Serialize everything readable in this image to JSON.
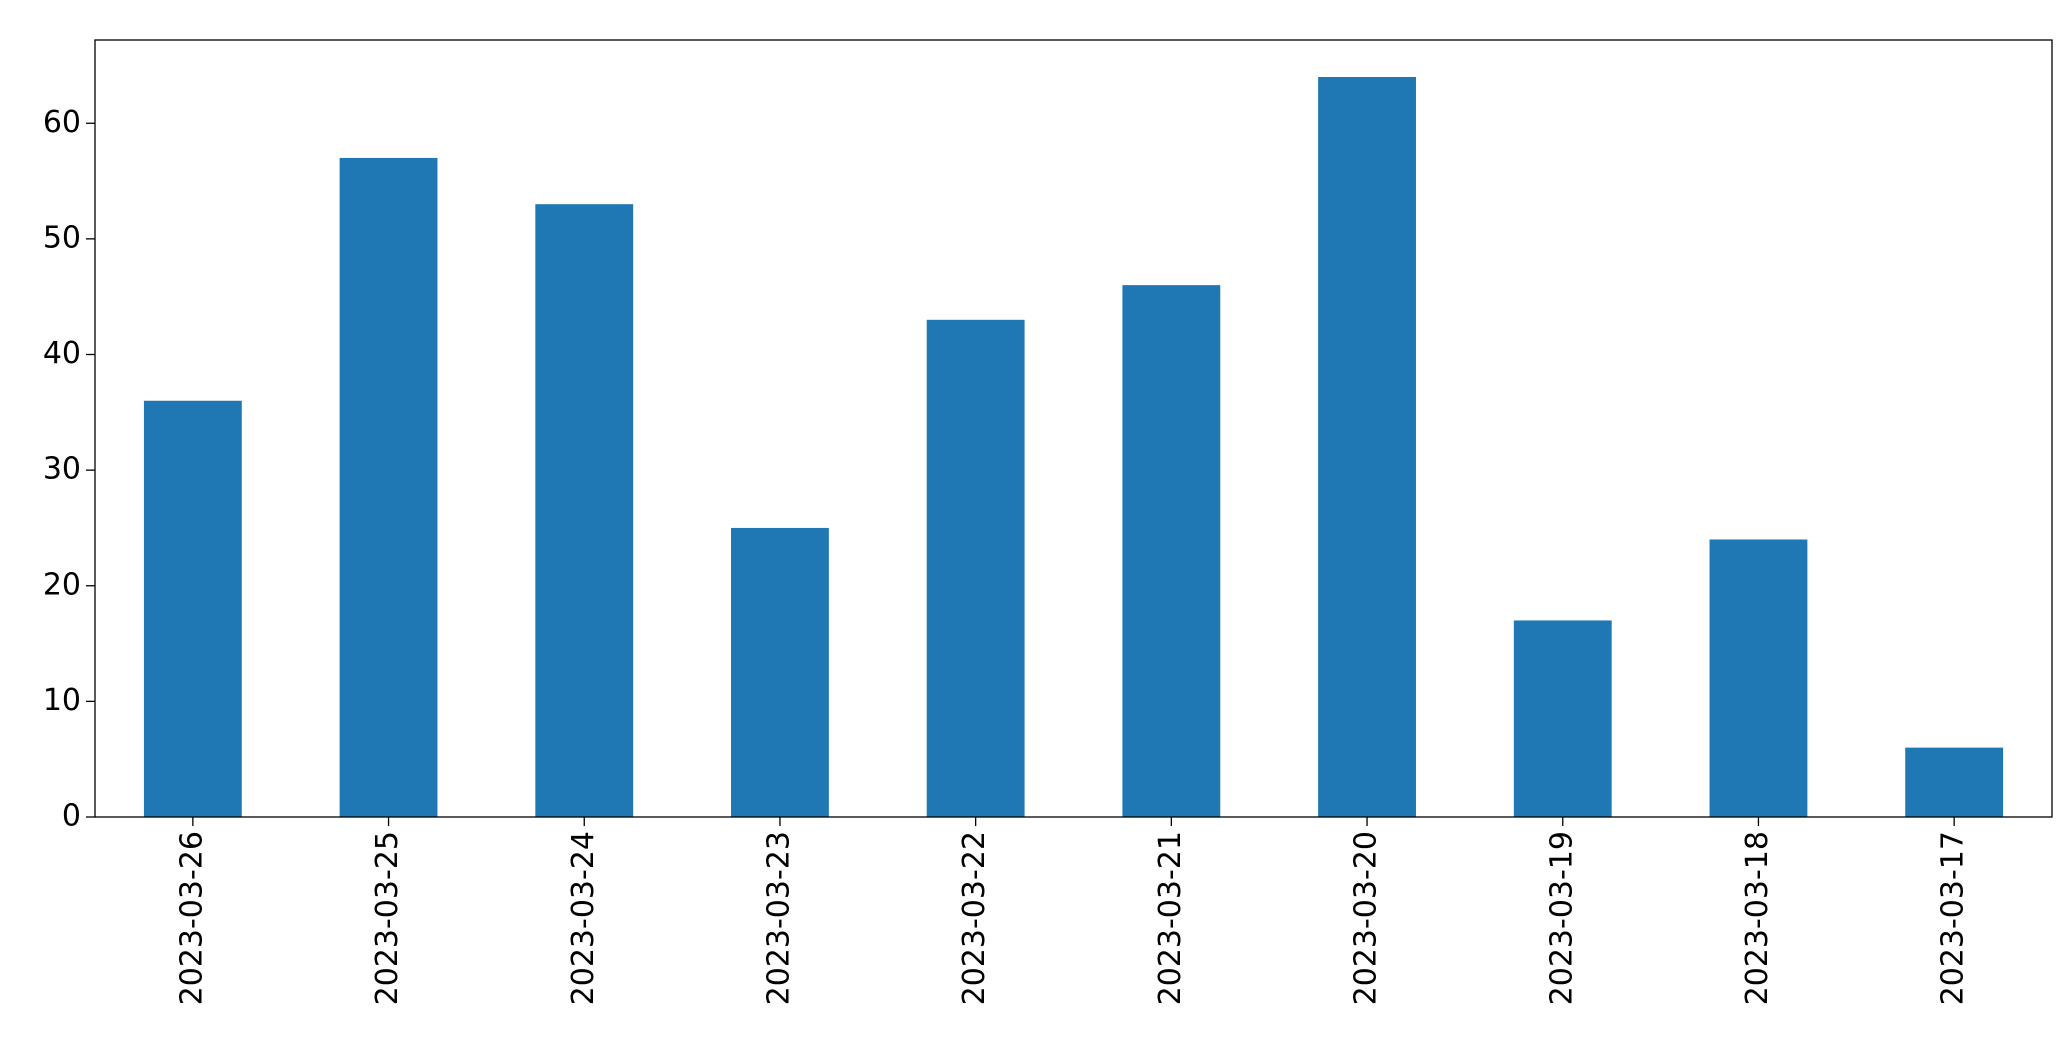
{
  "chart_data": {
    "type": "bar",
    "categories": [
      "2023-03-26",
      "2023-03-25",
      "2023-03-24",
      "2023-03-23",
      "2023-03-22",
      "2023-03-21",
      "2023-03-20",
      "2023-03-19",
      "2023-03-18",
      "2023-03-17"
    ],
    "values": [
      36,
      57,
      53,
      25,
      43,
      46,
      64,
      17,
      24,
      6
    ],
    "color": "#1f77b4",
    "ylim": [
      0,
      67.2
    ],
    "yticks": [
      0,
      10,
      20,
      30,
      40,
      50,
      60
    ],
    "grid": false
  }
}
